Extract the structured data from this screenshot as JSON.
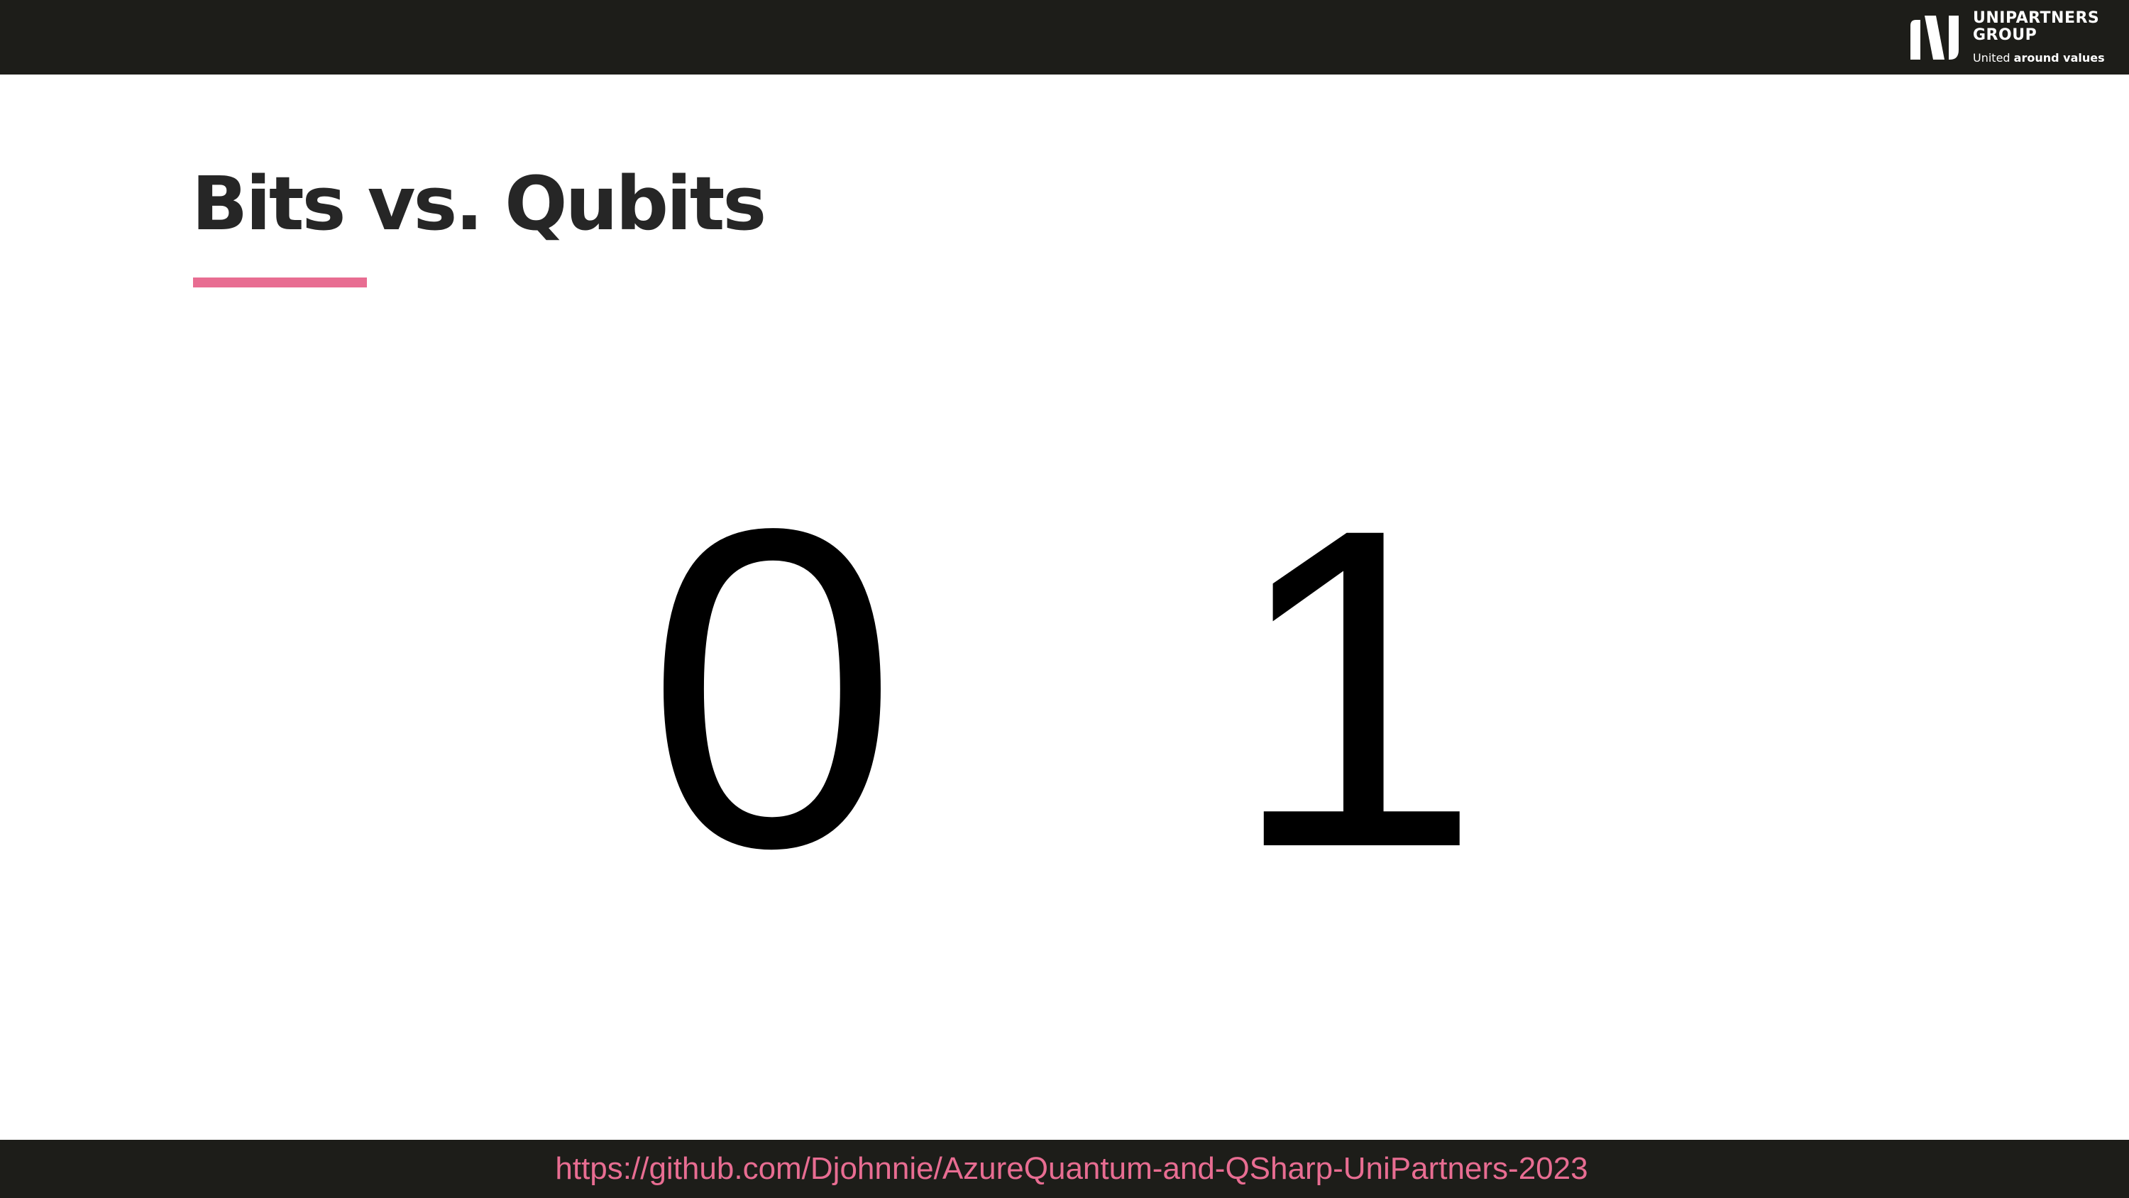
{
  "header": {
    "logo": {
      "name": "UNIPARTNERS GROUP",
      "tagline_prefix": "United",
      "tagline_bold": "around values"
    }
  },
  "slide": {
    "title": "Bits vs. Qubits",
    "accent_color": "#e86d92",
    "bits": [
      "0",
      "1"
    ]
  },
  "footer": {
    "link_text": "https://github.com/Djohnnie/AzureQuantum-and-QSharp-UniPartners-2023"
  },
  "colors": {
    "bar_background": "#1d1d19",
    "title_text": "#262626",
    "accent": "#e86d92"
  }
}
